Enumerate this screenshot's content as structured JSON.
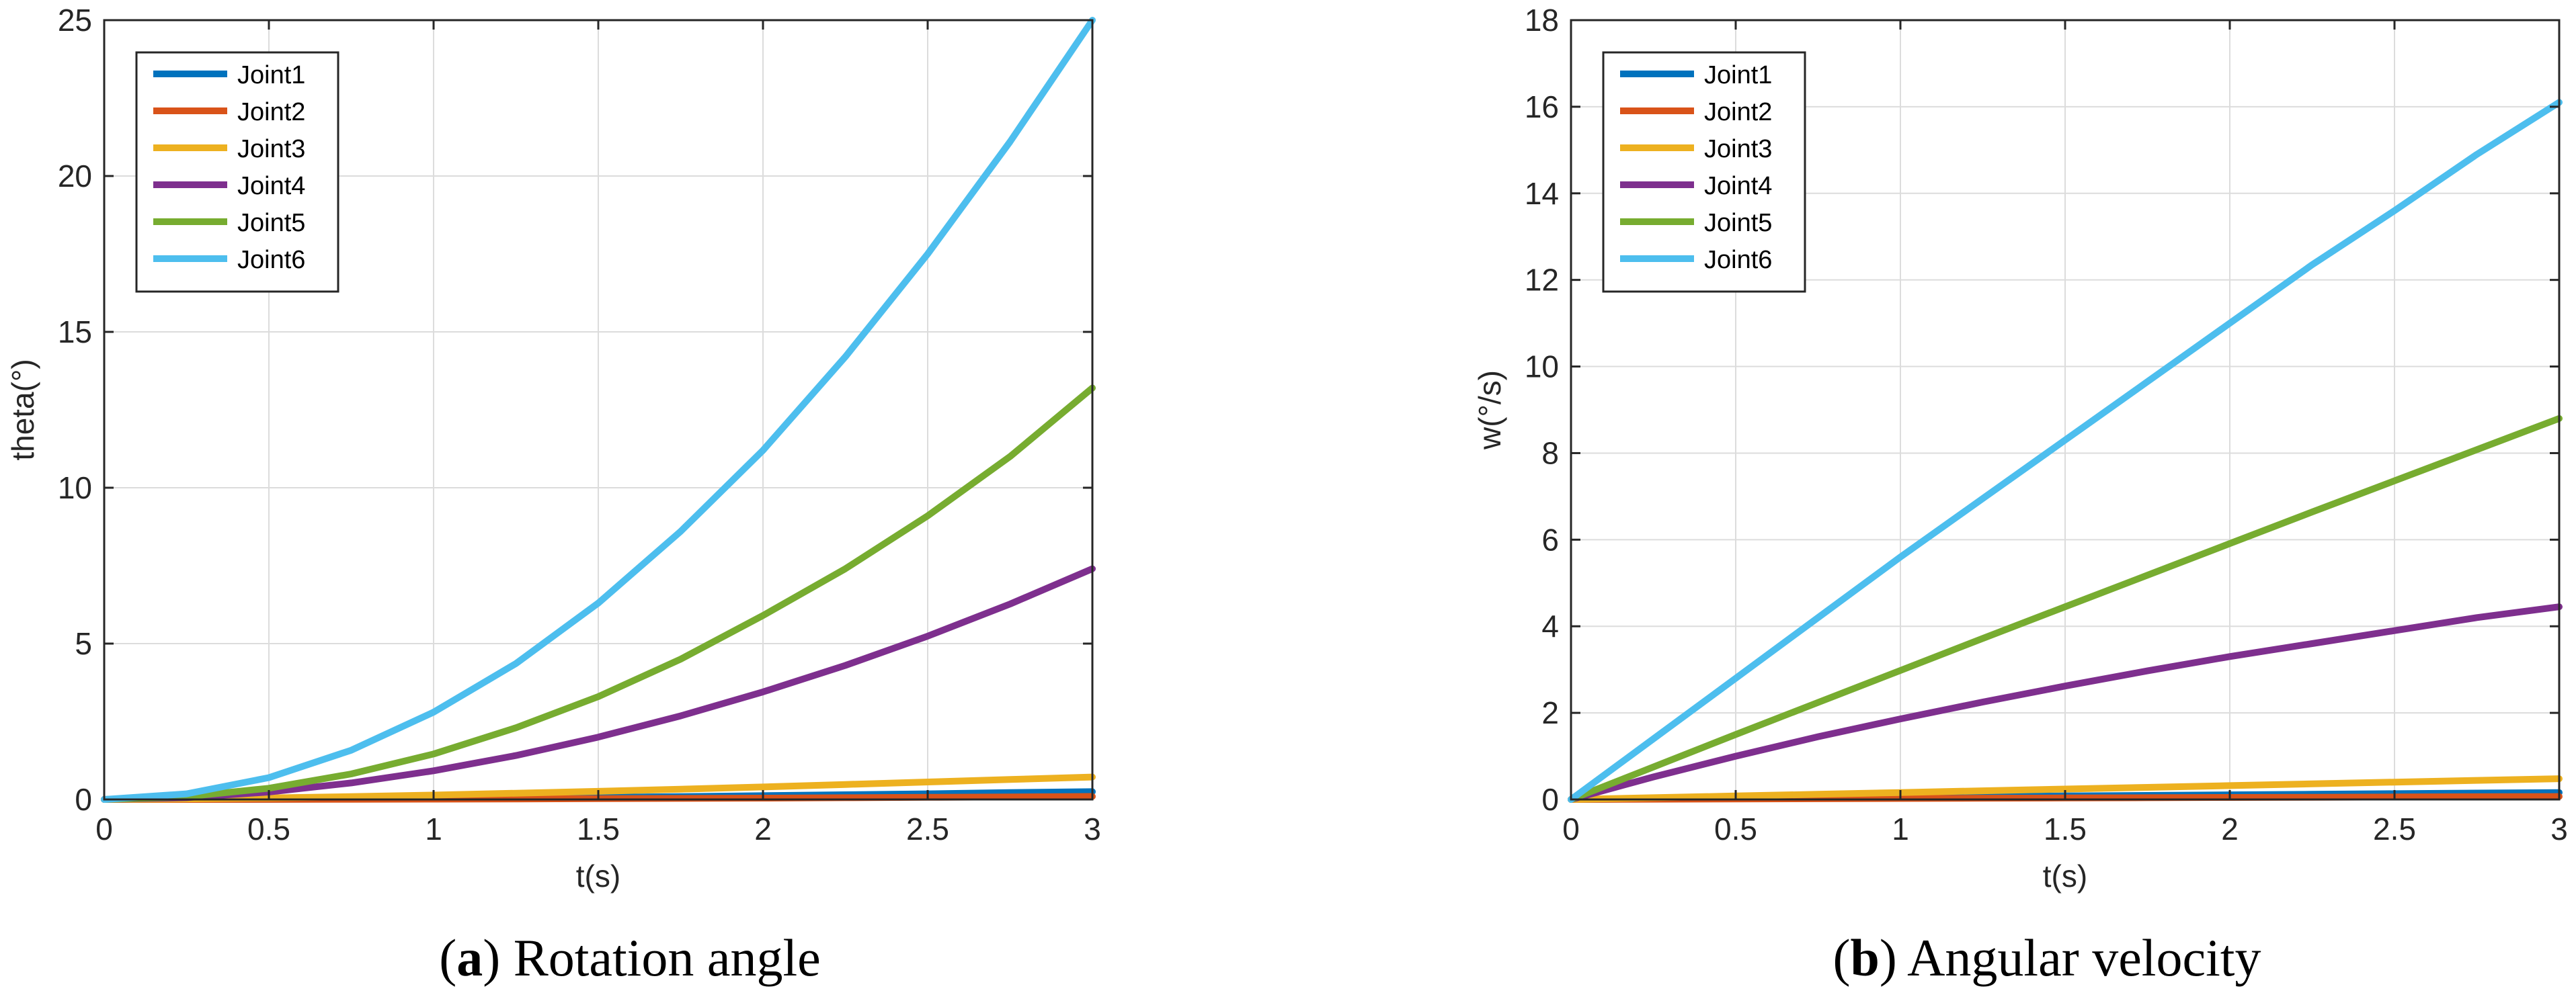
{
  "figure": {
    "left_caption": {
      "label": "a",
      "text": "Rotation angle"
    },
    "right_caption": {
      "label": "b",
      "text": "Angular velocity"
    }
  },
  "chart_data": [
    {
      "type": "line",
      "xlabel": "t(s)",
      "ylabel": "theta(°)",
      "xlim": [
        0,
        3
      ],
      "ylim": [
        0,
        25
      ],
      "xticks": [
        0,
        0.5,
        1,
        1.5,
        2,
        2.5,
        3
      ],
      "xtick_labels": [
        "0",
        "0.5",
        "1",
        "1.5",
        "2",
        "2.5",
        "3"
      ],
      "yticks": [
        0,
        5,
        10,
        15,
        20,
        25
      ],
      "ytick_labels": [
        "0",
        "5",
        "10",
        "15",
        "20",
        "25"
      ],
      "grid": true,
      "legend": "top-left",
      "x": [
        0,
        0.25,
        0.5,
        0.75,
        1,
        1.25,
        1.5,
        1.75,
        2,
        2.25,
        2.5,
        2.75,
        3
      ],
      "series": [
        {
          "name": "Joint1",
          "color": "#0072BD",
          "values": [
            0,
            0.002,
            0.007,
            0.016,
            0.03,
            0.046,
            0.066,
            0.09,
            0.12,
            0.15,
            0.18,
            0.22,
            0.25
          ]
        },
        {
          "name": "Joint2",
          "color": "#D95319",
          "values": [
            0,
            0.001,
            0.003,
            0.006,
            0.011,
            0.017,
            0.025,
            0.034,
            0.044,
            0.056,
            0.068,
            0.082,
            0.097
          ]
        },
        {
          "name": "Joint3",
          "color": "#EDB120",
          "values": [
            0,
            0.02,
            0.05,
            0.09,
            0.14,
            0.2,
            0.26,
            0.33,
            0.4,
            0.48,
            0.56,
            0.64,
            0.72
          ]
        },
        {
          "name": "Joint4",
          "color": "#7E2F8E",
          "values": [
            0,
            0.06,
            0.24,
            0.53,
            0.92,
            1.41,
            2.0,
            2.68,
            3.45,
            4.3,
            5.24,
            6.27,
            7.4
          ]
        },
        {
          "name": "Joint5",
          "color": "#77AC30",
          "values": [
            0,
            0.09,
            0.36,
            0.82,
            1.46,
            2.3,
            3.3,
            4.5,
            5.9,
            7.4,
            9.1,
            11.0,
            13.2
          ]
        },
        {
          "name": "Joint6",
          "color": "#4DBEEE",
          "values": [
            0,
            0.18,
            0.7,
            1.58,
            2.8,
            4.36,
            6.3,
            8.6,
            11.2,
            14.2,
            17.5,
            21.1,
            25.0
          ]
        }
      ]
    },
    {
      "type": "line",
      "xlabel": "t(s)",
      "ylabel": "w(°/s)",
      "xlim": [
        0,
        3
      ],
      "ylim": [
        0,
        18
      ],
      "xticks": [
        0,
        0.5,
        1,
        1.5,
        2,
        2.5,
        3
      ],
      "xtick_labels": [
        "0",
        "0.5",
        "1",
        "1.5",
        "2",
        "2.5",
        "3"
      ],
      "yticks": [
        0,
        2,
        4,
        6,
        8,
        10,
        12,
        14,
        16,
        18
      ],
      "ytick_labels": [
        "0",
        "2",
        "4",
        "6",
        "8",
        "10",
        "12",
        "14",
        "16",
        "18"
      ],
      "grid": true,
      "legend": "top-left",
      "x": [
        0,
        0.25,
        0.5,
        0.75,
        1,
        1.25,
        1.5,
        1.75,
        2,
        2.25,
        2.5,
        2.75,
        3
      ],
      "series": [
        {
          "name": "Joint1",
          "color": "#0072BD",
          "values": [
            0,
            0.013,
            0.027,
            0.04,
            0.053,
            0.067,
            0.08,
            0.093,
            0.107,
            0.12,
            0.133,
            0.147,
            0.16
          ]
        },
        {
          "name": "Joint2",
          "color": "#D95319",
          "values": [
            0,
            0.006,
            0.011,
            0.017,
            0.023,
            0.029,
            0.034,
            0.04,
            0.046,
            0.051,
            0.057,
            0.063,
            0.068
          ]
        },
        {
          "name": "Joint3",
          "color": "#EDB120",
          "values": [
            0,
            0.04,
            0.08,
            0.12,
            0.16,
            0.2,
            0.24,
            0.28,
            0.32,
            0.36,
            0.4,
            0.44,
            0.48
          ]
        },
        {
          "name": "Joint4",
          "color": "#7E2F8E",
          "values": [
            0,
            0.52,
            1.0,
            1.45,
            1.86,
            2.25,
            2.62,
            2.97,
            3.3,
            3.6,
            3.9,
            4.2,
            4.45
          ]
        },
        {
          "name": "Joint5",
          "color": "#77AC30",
          "values": [
            0,
            0.75,
            1.5,
            2.24,
            2.98,
            3.72,
            4.45,
            5.18,
            5.91,
            6.64,
            7.36,
            8.08,
            8.8
          ]
        },
        {
          "name": "Joint6",
          "color": "#4DBEEE",
          "values": [
            0,
            1.4,
            2.8,
            4.2,
            5.6,
            6.95,
            8.3,
            9.65,
            11.0,
            12.35,
            13.6,
            14.9,
            16.1
          ]
        }
      ]
    }
  ]
}
